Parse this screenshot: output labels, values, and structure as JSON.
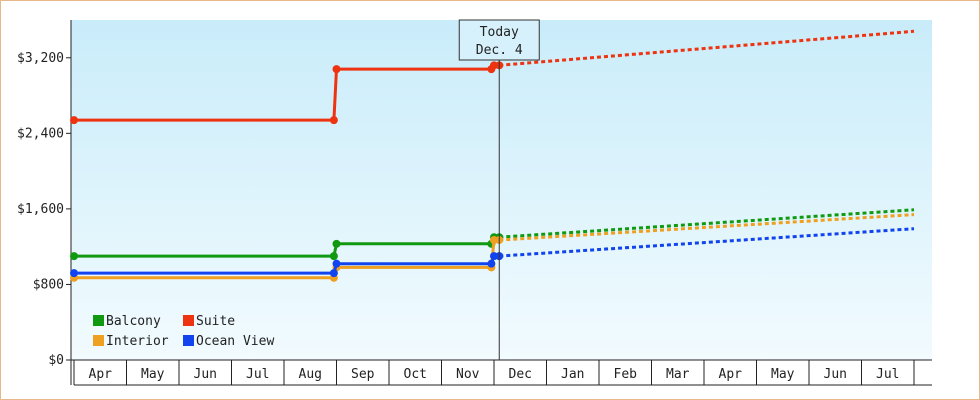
{
  "chart_data": {
    "type": "line",
    "title": "",
    "xlabel": "",
    "ylabel": "",
    "categories": [
      "Apr",
      "May",
      "Jun",
      "Jul",
      "Aug",
      "Sep",
      "Oct",
      "Nov",
      "Dec",
      "Jan",
      "Feb",
      "Mar",
      "Apr",
      "May",
      "Jun",
      "Jul"
    ],
    "ylim": [
      0,
      3600
    ],
    "yticks": [
      0,
      800,
      1600,
      2400,
      3200
    ],
    "ytick_labels": [
      "$0",
      "$800",
      "$1,600",
      "$2,400",
      "$3,200"
    ],
    "grid": false,
    "legend_position": "bottom-left",
    "today_marker": {
      "line1": "Today",
      "line2": "Dec. 4",
      "month_index": 8.1
    },
    "series": [
      {
        "name": "Balcony",
        "color": "#119911",
        "actual": [
          [
            0,
            1100
          ],
          [
            4.95,
            1100
          ],
          [
            5.0,
            1230
          ],
          [
            7.95,
            1230
          ],
          [
            8.0,
            1300
          ],
          [
            8.1,
            1300
          ]
        ],
        "forecast": [
          [
            8.1,
            1300
          ],
          [
            16.0,
            1590
          ]
        ]
      },
      {
        "name": "Suite",
        "color": "#ee3311",
        "actual": [
          [
            0,
            2540
          ],
          [
            4.95,
            2540
          ],
          [
            5.0,
            3080
          ],
          [
            7.95,
            3080
          ],
          [
            8.0,
            3120
          ],
          [
            8.1,
            3120
          ]
        ],
        "forecast": [
          [
            8.1,
            3120
          ],
          [
            16.0,
            3480
          ]
        ]
      },
      {
        "name": "Interior",
        "color": "#f0a020",
        "actual": [
          [
            0,
            870
          ],
          [
            4.95,
            870
          ],
          [
            5.0,
            980
          ],
          [
            7.95,
            980
          ],
          [
            8.0,
            1270
          ],
          [
            8.1,
            1270
          ]
        ],
        "forecast": [
          [
            8.1,
            1270
          ],
          [
            16.0,
            1540
          ]
        ]
      },
      {
        "name": "Ocean View",
        "color": "#1144ee",
        "actual": [
          [
            0,
            920
          ],
          [
            4.95,
            920
          ],
          [
            5.0,
            1020
          ],
          [
            7.95,
            1020
          ],
          [
            8.0,
            1100
          ],
          [
            8.1,
            1100
          ]
        ],
        "forecast": [
          [
            8.1,
            1100
          ],
          [
            16.0,
            1390
          ]
        ]
      }
    ]
  }
}
